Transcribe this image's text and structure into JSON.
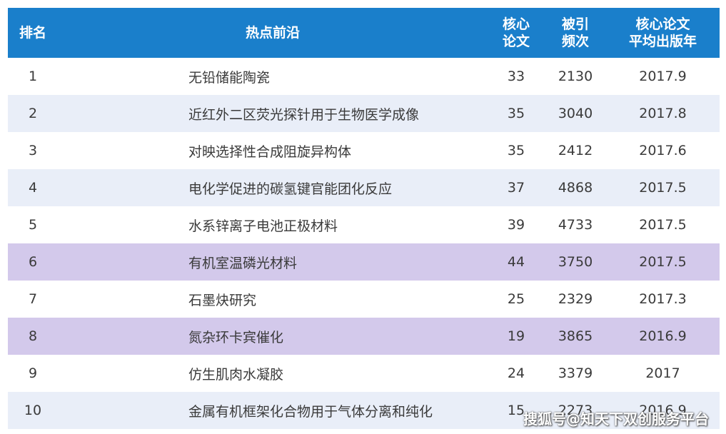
{
  "header": {
    "rank": "排名",
    "topic": "热点前沿",
    "core_line1": "核心",
    "core_line2": "论文",
    "cite_line1": "被引",
    "cite_line2": "频次",
    "year_line1": "核心论文",
    "year_line2": "平均出版年"
  },
  "rows": [
    {
      "rank": "1",
      "topic": "无铅储能陶瓷",
      "core": "33",
      "cite": "2130",
      "year": "2017.9"
    },
    {
      "rank": "2",
      "topic": "近红外二区荧光探针用于生物医学成像",
      "core": "35",
      "cite": "3040",
      "year": "2017.8"
    },
    {
      "rank": "3",
      "topic": "对映选择性合成阻旋异构体",
      "core": "35",
      "cite": "2412",
      "year": "2017.6"
    },
    {
      "rank": "4",
      "topic": "电化学促进的碳氢键官能团化反应",
      "core": "37",
      "cite": "4868",
      "year": "2017.5"
    },
    {
      "rank": "5",
      "topic": "水系锌离子电池正极材料",
      "core": "39",
      "cite": "4733",
      "year": "2017.5"
    },
    {
      "rank": "6",
      "topic": "有机室温磷光材料",
      "core": "44",
      "cite": "3750",
      "year": "2017.5"
    },
    {
      "rank": "7",
      "topic": "石墨炔研究",
      "core": "25",
      "cite": "2329",
      "year": "2017.3"
    },
    {
      "rank": "8",
      "topic": "氮杂环卡宾催化",
      "core": "19",
      "cite": "3865",
      "year": "2016.9"
    },
    {
      "rank": "9",
      "topic": "仿生肌肉水凝胶",
      "core": "24",
      "cite": "3379",
      "year": "2017"
    },
    {
      "rank": "10",
      "topic": "金属有机框架化合物用于气体分离和纯化",
      "core": "15",
      "cite": "2273",
      "year": "2016.9"
    }
  ],
  "watermark": "搜狐号@知天下双创服务平台",
  "colors": {
    "header_bg": "#1a7fcb",
    "row_even_bg": "#e9eef8",
    "row_highlight_bg": "#d3c9eb"
  }
}
